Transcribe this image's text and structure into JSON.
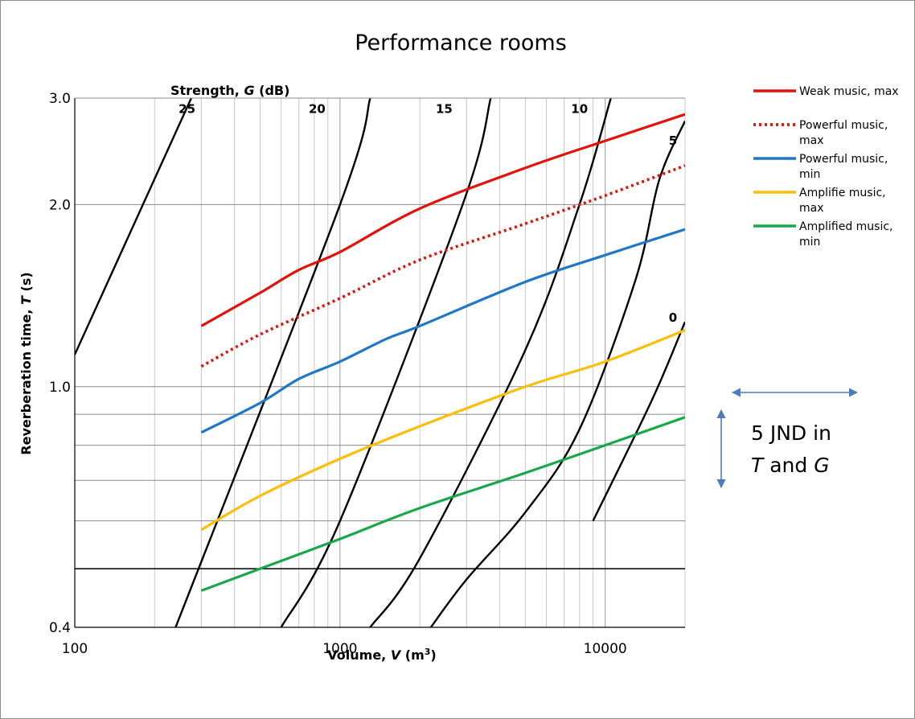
{
  "chart_data": {
    "type": "line",
    "title": "Performance rooms",
    "xlabel_prefix": "Volume, ",
    "xlabel_var": "V",
    "xlabel_suffix": " (m",
    "xlabel_sup": "3",
    "xlabel_close": ")",
    "ylabel_prefix": "Reverberation time, ",
    "ylabel_var": "T",
    "ylabel_suffix": " (s)",
    "x_scale": "log",
    "y_scale": "log",
    "xlim": [
      100,
      20000
    ],
    "ylim": [
      0.4,
      3.0
    ],
    "x_ticks": [
      {
        "value": 100,
        "label": "100"
      },
      {
        "value": 1000,
        "label": "1000"
      },
      {
        "value": 10000,
        "label": "10000"
      }
    ],
    "y_ticks": [
      {
        "value": 3.0,
        "label": "3.0"
      },
      {
        "value": 2.0,
        "label": "2.0"
      },
      {
        "value": 1.0,
        "label": "1.0"
      },
      {
        "value": 0.4,
        "label": "0.4"
      }
    ],
    "y_gridlines": [
      0.5,
      0.6,
      0.7,
      0.8,
      0.9,
      1.0,
      2.0,
      3.0
    ],
    "strength_label_prefix": "Strength, ",
    "strength_label_var": "G",
    "strength_label_suffix": " (dB)",
    "strength_lines": [
      {
        "label": "25",
        "label_at": [
          265,
          2.88
        ],
        "points": [
          [
            100,
            1.13
          ],
          [
            275,
            3.0
          ]
        ]
      },
      {
        "label": "20",
        "label_at": [
          820,
          2.88
        ],
        "points": [
          [
            240,
            0.4
          ],
          [
            1000,
            2.0
          ],
          [
            1300,
            3.0
          ]
        ]
      },
      {
        "label": "15",
        "label_at": [
          2470,
          2.88
        ],
        "points": [
          [
            600,
            0.4
          ],
          [
            1000,
            0.6
          ],
          [
            2900,
            2.0
          ],
          [
            3700,
            3.0
          ]
        ]
      },
      {
        "label": "10",
        "label_at": [
          8000,
          2.88
        ],
        "points": [
          [
            1300,
            0.4
          ],
          [
            2000,
            0.52
          ],
          [
            5000,
            1.15
          ],
          [
            8000,
            2.0
          ],
          [
            10500,
            3.0
          ]
        ]
      },
      {
        "label": "5",
        "label_at": [
          18000,
          2.55
        ],
        "points": [
          [
            2200,
            0.4
          ],
          [
            3000,
            0.48
          ],
          [
            5000,
            0.62
          ],
          [
            8000,
            0.85
          ],
          [
            13000,
            1.5
          ],
          [
            16000,
            2.2
          ],
          [
            20000,
            2.75
          ]
        ]
      },
      {
        "label": "0",
        "label_at": [
          18000,
          1.3
        ],
        "points": [
          [
            9000,
            0.6
          ],
          [
            15000,
            0.95
          ],
          [
            20000,
            1.28
          ]
        ]
      }
    ],
    "series": [
      {
        "name": "Weak music, max",
        "color": "#e3120b",
        "dash": "solid",
        "x": [
          300,
          500,
          700,
          1000,
          2000,
          5000,
          10000,
          20000
        ],
        "y": [
          1.26,
          1.43,
          1.56,
          1.67,
          1.97,
          2.3,
          2.55,
          2.82
        ]
      },
      {
        "name": "Powerful music, max",
        "color": "#e3120b",
        "dash": "dotted",
        "x": [
          300,
          500,
          1000,
          2000,
          5000,
          10000,
          20000
        ],
        "y": [
          1.08,
          1.22,
          1.4,
          1.62,
          1.86,
          2.07,
          2.32
        ]
      },
      {
        "name": "Powerful music, min",
        "color": "#1f77c8",
        "dash": "solid",
        "x": [
          300,
          500,
          700,
          1000,
          1500,
          2000,
          5000,
          10000,
          20000
        ],
        "y": [
          0.84,
          0.94,
          1.03,
          1.1,
          1.2,
          1.26,
          1.49,
          1.65,
          1.82
        ]
      },
      {
        "name": "Amplifie music, max",
        "color": "#fbbf0b",
        "dash": "solid",
        "x": [
          300,
          500,
          1000,
          2000,
          5000,
          10000,
          20000
        ],
        "y": [
          0.58,
          0.66,
          0.76,
          0.86,
          1.0,
          1.1,
          1.24
        ]
      },
      {
        "name": "Amplified music, min",
        "color": "#18a849",
        "dash": "solid",
        "x": [
          300,
          500,
          1000,
          2000,
          5000,
          10000,
          20000
        ],
        "y": [
          0.46,
          0.5,
          0.56,
          0.63,
          0.72,
          0.8,
          0.89
        ]
      }
    ],
    "legend_position": "right",
    "legend": [
      {
        "line1": "Weak music, max",
        "line2": ""
      },
      {
        "line1": "Powerful music,",
        "line2": "max"
      },
      {
        "line1": "Powerful music,",
        "line2": "min"
      },
      {
        "line1": "Amplifie music,",
        "line2": "max"
      },
      {
        "line1": "Amplified music,",
        "line2": "min"
      }
    ],
    "jnd_annotation": {
      "line1": "5 JND in",
      "line2_var1": "T",
      "line2_mid": " and ",
      "line2_var2": "G",
      "arrow_color": "#4a7ebb"
    }
  }
}
